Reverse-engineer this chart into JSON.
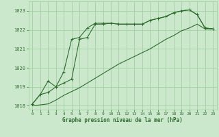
{
  "x": [
    0,
    1,
    2,
    3,
    4,
    5,
    6,
    7,
    8,
    9,
    10,
    11,
    12,
    13,
    14,
    15,
    16,
    17,
    18,
    19,
    20,
    21,
    22,
    23
  ],
  "series1": [
    1018.1,
    1018.6,
    1018.7,
    1019.0,
    1019.2,
    1019.4,
    1021.5,
    1021.6,
    1022.3,
    1022.3,
    1022.35,
    1022.3,
    1022.3,
    1022.3,
    1022.3,
    1022.5,
    1022.6,
    1022.7,
    1022.9,
    1023.0,
    1023.05,
    1022.8,
    1022.1,
    1022.05
  ],
  "series2": [
    1018.1,
    1018.6,
    1019.3,
    1019.0,
    1019.8,
    1021.5,
    1021.6,
    1022.1,
    1022.35,
    1022.35,
    1022.35,
    1022.3,
    1022.3,
    1022.3,
    1022.3,
    1022.5,
    1022.6,
    1022.7,
    1022.9,
    1023.0,
    1023.05,
    1022.8,
    1022.1,
    1022.05
  ],
  "series3": [
    1018.0,
    1018.05,
    1018.1,
    1018.3,
    1018.55,
    1018.75,
    1018.95,
    1019.2,
    1019.45,
    1019.7,
    1019.95,
    1020.2,
    1020.4,
    1020.6,
    1020.8,
    1021.0,
    1021.25,
    1021.5,
    1021.7,
    1021.95,
    1022.1,
    1022.3,
    1022.05,
    1022.05
  ],
  "line_color": "#2d6b2d",
  "bg_color": "#cce8cc",
  "grid_color": "#99cc99",
  "xlabel": "Graphe pression niveau de la mer (hPa)",
  "ylim": [
    1017.8,
    1023.5
  ],
  "xlim": [
    -0.5,
    23.5
  ]
}
